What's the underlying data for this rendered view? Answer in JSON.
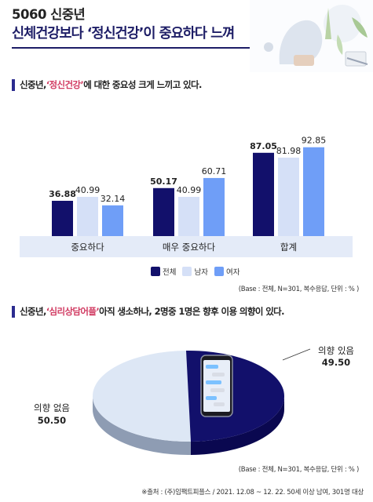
{
  "header": {
    "title_line1": "5060 신중년",
    "title_line2": "신체건강보다 ‘정신건강’이 중요하다 느껴"
  },
  "section1": {
    "prefix": "신중년, ",
    "highlight": "‘정신건강’",
    "suffix": "에 대한 중요성 크게 느끼고 있다."
  },
  "section2": {
    "prefix": "신중년, ",
    "highlight": "‘심리상담어플’",
    "suffix": " 아직 생소하나, 2명중 1명은 향후 이용 의향이 있다."
  },
  "note1": "(Base : 전체, N=301, 복수응답, 단위 : % )",
  "note2": "(Base : 전체, N=301, 복수응답, 단위 : % )",
  "source": "※출처 : (주)임팩트피플스 / 2021. 12.08 ~ 12. 22. 50세 이상 남여, 301명 대상",
  "colors": {
    "navy": "#12106b",
    "light": "#d5e0f7",
    "blue": "#6f9ef7",
    "panel": "#e4ebf8",
    "accent": "#d13b62"
  },
  "chart_data": [
    {
      "type": "bar",
      "categories": [
        "중요하다",
        "매우 중요하다",
        "합계"
      ],
      "series": [
        {
          "name": "전체",
          "values": [
            36.88,
            50.17,
            87.05
          ]
        },
        {
          "name": "남자",
          "values": [
            40.99,
            40.99,
            81.98
          ]
        },
        {
          "name": "여자",
          "values": [
            32.14,
            60.71,
            92.85
          ]
        }
      ],
      "ylim": [
        0,
        100
      ],
      "legend": "bottom-right"
    },
    {
      "type": "pie",
      "labels": [
        "의향 있음",
        "의향 없음"
      ],
      "values": [
        49.5,
        50.5
      ]
    }
  ]
}
